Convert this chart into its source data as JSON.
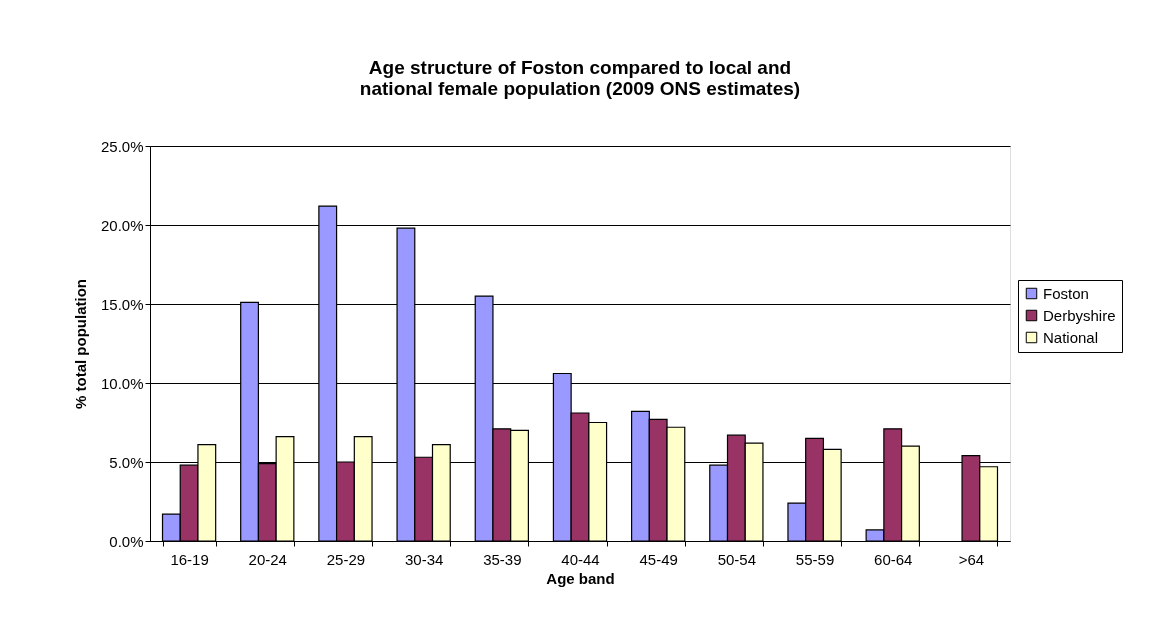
{
  "chart_data": {
    "type": "bar",
    "title": "Age structure of Foston compared to local and national female population (2009 ONS estimates)",
    "xlabel": "Age band",
    "ylabel": "% total population",
    "categories": [
      "16-19",
      "20-24",
      "25-29",
      "30-34",
      "35-39",
      "40-44",
      "45-49",
      "50-54",
      "55-59",
      "60-64",
      ">64"
    ],
    "series": [
      {
        "name": "Foston",
        "color": "#9999ff",
        "values": [
          1.7,
          15.1,
          21.2,
          19.8,
          15.5,
          10.6,
          8.2,
          4.8,
          2.4,
          0.7,
          null
        ]
      },
      {
        "name": "Derbyshire",
        "color": "#993366",
        "values": [
          4.8,
          4.9,
          5.0,
          5.3,
          7.1,
          8.1,
          7.7,
          6.7,
          6.5,
          7.1,
          5.4
        ]
      },
      {
        "name": "National",
        "color": "#ffffcc",
        "values": [
          6.1,
          6.6,
          6.6,
          6.1,
          7.0,
          7.5,
          7.2,
          6.2,
          5.8,
          6.0,
          4.7
        ]
      }
    ],
    "ylim": [
      0,
      25
    ],
    "yticks": [
      {
        "value": 0,
        "label": "0.0%"
      },
      {
        "value": 5,
        "label": "5.0%"
      },
      {
        "value": 10,
        "label": "10.0%"
      },
      {
        "value": 15,
        "label": "15.0%"
      },
      {
        "value": 20,
        "label": "20.0%"
      },
      {
        "value": 25,
        "label": "25.0%"
      }
    ],
    "grid": "y",
    "legend": "right"
  }
}
